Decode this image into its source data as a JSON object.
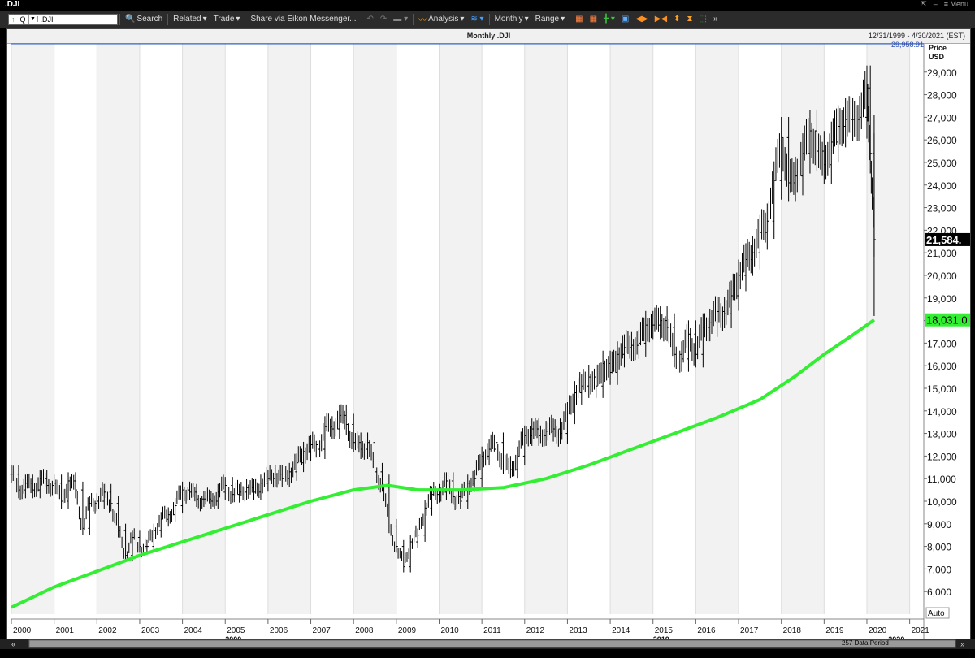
{
  "window": {
    "title": ".DJI",
    "menu_label": "Menu"
  },
  "toolbar": {
    "ric_value": ".DJI",
    "q_label": "Q",
    "search": "Search",
    "related": "Related",
    "trade": "Trade",
    "share": "Share via Eikon Messenger...",
    "analysis": "Analysis",
    "interval": "Monthly",
    "range": "Range"
  },
  "chart": {
    "title": "Monthly .DJI",
    "date_range": "12/31/1999 - 4/30/2021 (EST)",
    "price_label": "Price",
    "currency_label": "USD",
    "high_marker": "29,958.91",
    "last_price_tag": "21,584.",
    "ma_price_tag": "18,031.0",
    "auto_label": "Auto",
    "period_label": "257 Data Period",
    "decade_labels": [
      "2000",
      "2010",
      "2020"
    ],
    "colors": {
      "price": "#000000",
      "ma": "#33ee33",
      "last_tag_bg": "#000000",
      "ma_tag_bg": "#33ee33"
    }
  },
  "chart_data": {
    "type": "line",
    "title": "Monthly .DJI",
    "xlabel": "",
    "ylabel": "Price USD",
    "x_ticks": [
      "2000",
      "2001",
      "2002",
      "2003",
      "2004",
      "2005",
      "2006",
      "2007",
      "2008",
      "2009",
      "2010",
      "2011",
      "2012",
      "2013",
      "2014",
      "2015",
      "2016",
      "2017",
      "2018",
      "2019",
      "2020",
      "2021"
    ],
    "y_ticks": [
      6000,
      7000,
      8000,
      9000,
      10000,
      11000,
      12000,
      13000,
      14000,
      15000,
      16000,
      17000,
      18000,
      19000,
      20000,
      21000,
      22000,
      23000,
      24000,
      25000,
      26000,
      27000,
      28000,
      29000
    ],
    "ylim": [
      5000,
      30250
    ],
    "xlim": [
      2000.0,
      2021.33
    ],
    "series": [
      {
        "name": ".DJI",
        "style": "ohlc",
        "points": [
          [
            2000.0,
            11200
          ],
          [
            2000.17,
            10500
          ],
          [
            2000.33,
            10800
          ],
          [
            2000.5,
            10500
          ],
          [
            2000.67,
            11000
          ],
          [
            2000.83,
            10700
          ],
          [
            2001.0,
            10800
          ],
          [
            2001.17,
            10000
          ],
          [
            2001.33,
            10900
          ],
          [
            2001.5,
            10500
          ],
          [
            2001.67,
            8800
          ],
          [
            2001.83,
            9900
          ],
          [
            2002.0,
            10000
          ],
          [
            2002.17,
            10400
          ],
          [
            2002.33,
            9900
          ],
          [
            2002.5,
            8700
          ],
          [
            2002.67,
            7600
          ],
          [
            2002.83,
            8400
          ],
          [
            2003.0,
            8000
          ],
          [
            2003.17,
            8000
          ],
          [
            2003.33,
            8700
          ],
          [
            2003.5,
            9200
          ],
          [
            2003.67,
            9400
          ],
          [
            2003.83,
            9800
          ],
          [
            2004.0,
            10500
          ],
          [
            2004.17,
            10400
          ],
          [
            2004.33,
            10100
          ],
          [
            2004.5,
            10100
          ],
          [
            2004.67,
            10000
          ],
          [
            2004.83,
            10400
          ],
          [
            2005.0,
            10700
          ],
          [
            2005.17,
            10300
          ],
          [
            2005.33,
            10400
          ],
          [
            2005.5,
            10600
          ],
          [
            2005.67,
            10400
          ],
          [
            2005.83,
            10800
          ],
          [
            2006.0,
            11000
          ],
          [
            2006.17,
            11200
          ],
          [
            2006.33,
            11000
          ],
          [
            2006.5,
            11300
          ],
          [
            2006.67,
            11700
          ],
          [
            2006.83,
            12200
          ],
          [
            2007.0,
            12500
          ],
          [
            2007.17,
            12300
          ],
          [
            2007.33,
            13300
          ],
          [
            2007.5,
            13200
          ],
          [
            2007.67,
            13800
          ],
          [
            2007.83,
            13400
          ],
          [
            2008.0,
            12600
          ],
          [
            2008.17,
            12300
          ],
          [
            2008.33,
            12600
          ],
          [
            2008.5,
            11300
          ],
          [
            2008.67,
            10800
          ],
          [
            2008.83,
            8900
          ],
          [
            2009.0,
            8000
          ],
          [
            2009.17,
            7100
          ],
          [
            2009.33,
            8200
          ],
          [
            2009.5,
            8500
          ],
          [
            2009.67,
            9700
          ],
          [
            2009.83,
            10300
          ],
          [
            2010.0,
            10400
          ],
          [
            2010.17,
            10900
          ],
          [
            2010.33,
            10200
          ],
          [
            2010.5,
            10000
          ],
          [
            2010.67,
            10800
          ],
          [
            2010.83,
            11000
          ],
          [
            2011.0,
            12000
          ],
          [
            2011.17,
            12300
          ],
          [
            2011.33,
            12600
          ],
          [
            2011.5,
            11600
          ],
          [
            2011.67,
            11400
          ],
          [
            2011.83,
            12000
          ],
          [
            2012.0,
            12900
          ],
          [
            2012.17,
            13200
          ],
          [
            2012.33,
            12900
          ],
          [
            2012.5,
            13100
          ],
          [
            2012.67,
            13200
          ],
          [
            2012.83,
            13000
          ],
          [
            2013.0,
            13900
          ],
          [
            2013.17,
            14800
          ],
          [
            2013.33,
            15100
          ],
          [
            2013.5,
            15500
          ],
          [
            2013.67,
            15100
          ],
          [
            2013.83,
            16100
          ],
          [
            2014.0,
            15700
          ],
          [
            2014.17,
            16500
          ],
          [
            2014.33,
            16800
          ],
          [
            2014.5,
            16900
          ],
          [
            2014.67,
            17000
          ],
          [
            2014.83,
            17800
          ],
          [
            2015.0,
            17800
          ],
          [
            2015.17,
            18000
          ],
          [
            2015.33,
            17700
          ],
          [
            2015.5,
            16500
          ],
          [
            2015.67,
            16300
          ],
          [
            2015.83,
            17400
          ],
          [
            2016.0,
            16500
          ],
          [
            2016.17,
            17700
          ],
          [
            2016.33,
            17900
          ],
          [
            2016.5,
            18400
          ],
          [
            2016.67,
            18300
          ],
          [
            2016.83,
            19100
          ],
          [
            2017.0,
            20000
          ],
          [
            2017.17,
            20700
          ],
          [
            2017.33,
            21000
          ],
          [
            2017.5,
            21900
          ],
          [
            2017.67,
            22400
          ],
          [
            2017.83,
            24200
          ],
          [
            2018.0,
            26100
          ],
          [
            2018.17,
            24100
          ],
          [
            2018.33,
            24400
          ],
          [
            2018.5,
            25400
          ],
          [
            2018.67,
            26400
          ],
          [
            2018.83,
            25500
          ],
          [
            2019.0,
            24900
          ],
          [
            2019.17,
            25900
          ],
          [
            2019.33,
            26600
          ],
          [
            2019.5,
            26900
          ],
          [
            2019.67,
            26900
          ],
          [
            2019.83,
            27000
          ],
          [
            2020.0,
            28300
          ],
          [
            2020.08,
            25400
          ],
          [
            2020.17,
            21584
          ]
        ]
      },
      {
        "name": "Moving Average",
        "points": [
          [
            2000.0,
            5300
          ],
          [
            2001.0,
            6200
          ],
          [
            2002.0,
            6900
          ],
          [
            2003.0,
            7600
          ],
          [
            2004.0,
            8200
          ],
          [
            2005.0,
            8800
          ],
          [
            2006.0,
            9400
          ],
          [
            2007.0,
            10000
          ],
          [
            2008.0,
            10500
          ],
          [
            2008.8,
            10700
          ],
          [
            2009.5,
            10500
          ],
          [
            2010.5,
            10500
          ],
          [
            2011.5,
            10600
          ],
          [
            2012.5,
            11000
          ],
          [
            2013.5,
            11600
          ],
          [
            2014.5,
            12300
          ],
          [
            2015.5,
            13000
          ],
          [
            2016.5,
            13700
          ],
          [
            2017.5,
            14500
          ],
          [
            2018.3,
            15500
          ],
          [
            2019.0,
            16500
          ],
          [
            2019.7,
            17400
          ],
          [
            2020.17,
            18031
          ]
        ]
      }
    ]
  }
}
